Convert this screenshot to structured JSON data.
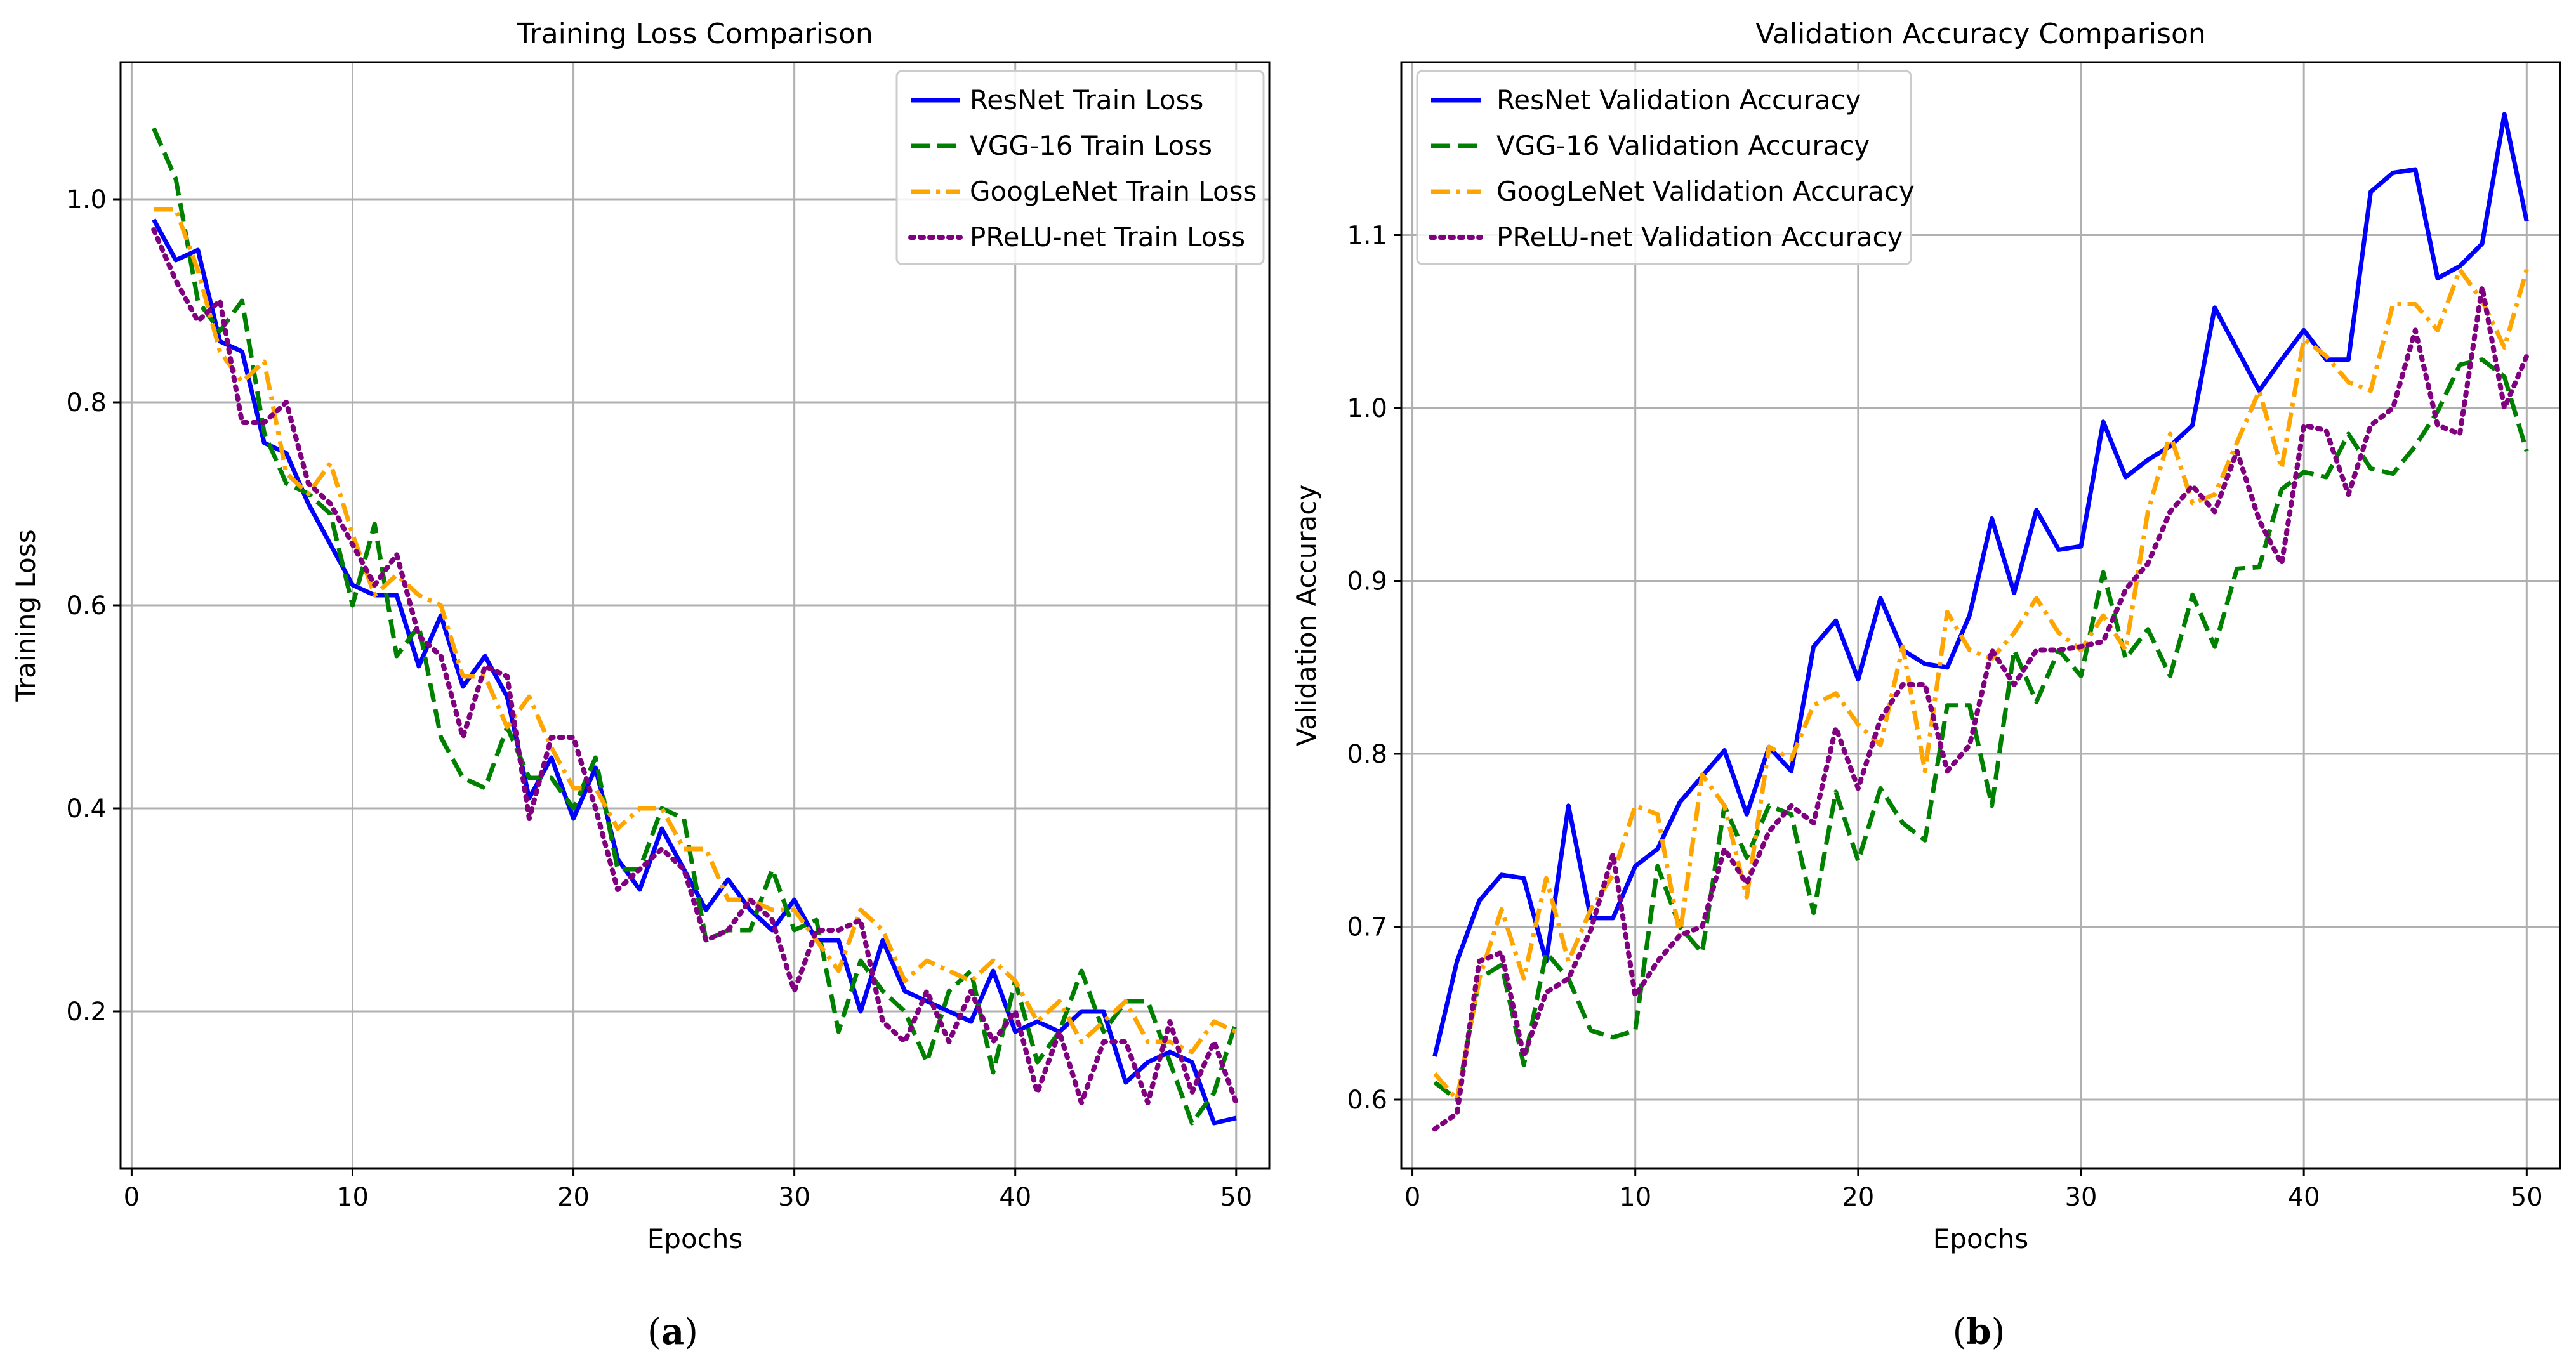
{
  "chart_data": [
    {
      "type": "line",
      "panel_label": "a",
      "title": "Training Loss Comparison",
      "xlabel": "Epochs",
      "ylabel": "Training Loss",
      "xlim": [
        -0.5,
        51.5
      ],
      "ylim": [
        0.045,
        1.135
      ],
      "xticks": [
        0,
        10,
        20,
        30,
        40,
        50
      ],
      "yticks": [
        0.2,
        0.4,
        0.6,
        0.8,
        1.0
      ],
      "ytick_labels": [
        "0.2",
        "0.4",
        "0.6",
        "0.8",
        "1.0"
      ],
      "grid": true,
      "legend_position": "upper right",
      "x": [
        1,
        2,
        3,
        4,
        5,
        6,
        7,
        8,
        9,
        10,
        11,
        12,
        13,
        14,
        15,
        16,
        17,
        18,
        19,
        20,
        21,
        22,
        23,
        24,
        25,
        26,
        27,
        28,
        29,
        30,
        31,
        32,
        33,
        34,
        35,
        36,
        37,
        38,
        39,
        40,
        41,
        42,
        43,
        44,
        45,
        46,
        47,
        48,
        49,
        50
      ],
      "series": [
        {
          "name": "ResNet Train Loss",
          "color": "#0000ff",
          "style": "solid",
          "values": [
            0.98,
            0.94,
            0.95,
            0.86,
            0.85,
            0.76,
            0.75,
            0.7,
            0.66,
            0.62,
            0.61,
            0.61,
            0.54,
            0.59,
            0.52,
            0.55,
            0.51,
            0.41,
            0.45,
            0.39,
            0.44,
            0.35,
            0.32,
            0.38,
            0.34,
            0.3,
            0.33,
            0.3,
            0.28,
            0.31,
            0.27,
            0.27,
            0.2,
            0.27,
            0.22,
            0.21,
            0.2,
            0.19,
            0.24,
            0.18,
            0.19,
            0.18,
            0.2,
            0.2,
            0.13,
            0.15,
            0.16,
            0.15,
            0.09,
            0.095
          ]
        },
        {
          "name": "VGG-16 Train Loss",
          "color": "#008000",
          "style": "dashed",
          "values": [
            1.07,
            1.02,
            0.9,
            0.87,
            0.9,
            0.77,
            0.72,
            0.71,
            0.69,
            0.6,
            0.68,
            0.55,
            0.58,
            0.47,
            0.43,
            0.42,
            0.48,
            0.43,
            0.43,
            0.4,
            0.45,
            0.34,
            0.34,
            0.4,
            0.39,
            0.27,
            0.28,
            0.28,
            0.34,
            0.28,
            0.29,
            0.18,
            0.25,
            0.22,
            0.2,
            0.15,
            0.22,
            0.24,
            0.14,
            0.23,
            0.15,
            0.18,
            0.24,
            0.18,
            0.21,
            0.21,
            0.15,
            0.09,
            0.12,
            0.19
          ]
        },
        {
          "name": "GoogLeNet Train Loss",
          "color": "#ffa500",
          "style": "dashdot",
          "values": [
            0.99,
            0.99,
            0.93,
            0.85,
            0.82,
            0.84,
            0.73,
            0.71,
            0.74,
            0.67,
            0.61,
            0.63,
            0.61,
            0.6,
            0.53,
            0.53,
            0.48,
            0.51,
            0.46,
            0.42,
            0.42,
            0.38,
            0.4,
            0.4,
            0.36,
            0.36,
            0.31,
            0.31,
            0.3,
            0.3,
            0.27,
            0.24,
            0.3,
            0.28,
            0.23,
            0.25,
            0.24,
            0.23,
            0.25,
            0.23,
            0.19,
            0.21,
            0.17,
            0.19,
            0.21,
            0.17,
            0.17,
            0.16,
            0.19,
            0.18
          ]
        },
        {
          "name": "PReLU-net Train Loss",
          "color": "#800080",
          "style": "dotted",
          "values": [
            0.97,
            0.92,
            0.88,
            0.9,
            0.78,
            0.78,
            0.8,
            0.72,
            0.7,
            0.66,
            0.62,
            0.65,
            0.57,
            0.55,
            0.47,
            0.54,
            0.53,
            0.39,
            0.47,
            0.47,
            0.4,
            0.32,
            0.34,
            0.36,
            0.34,
            0.27,
            0.28,
            0.31,
            0.29,
            0.22,
            0.28,
            0.28,
            0.29,
            0.19,
            0.17,
            0.22,
            0.17,
            0.22,
            0.17,
            0.2,
            0.12,
            0.18,
            0.11,
            0.17,
            0.17,
            0.11,
            0.19,
            0.12,
            0.17,
            0.11
          ]
        }
      ]
    },
    {
      "type": "line",
      "panel_label": "b",
      "title": "Validation Accuracy Comparison",
      "xlabel": "Epochs",
      "ylabel": "Validation Accuracy",
      "xlim": [
        -0.5,
        51.5
      ],
      "ylim": [
        0.56,
        1.2
      ],
      "xticks": [
        0,
        10,
        20,
        30,
        40,
        50
      ],
      "yticks": [
        0.6,
        0.7,
        0.8,
        0.9,
        1.0,
        1.1
      ],
      "ytick_labels": [
        "0.6",
        "0.7",
        "0.8",
        "0.9",
        "1.0",
        "1.1"
      ],
      "grid": true,
      "legend_position": "upper left",
      "x": [
        1,
        2,
        3,
        4,
        5,
        6,
        7,
        8,
        9,
        10,
        11,
        12,
        13,
        14,
        15,
        16,
        17,
        18,
        19,
        20,
        21,
        22,
        23,
        24,
        25,
        26,
        27,
        28,
        29,
        30,
        31,
        32,
        33,
        34,
        35,
        36,
        37,
        38,
        39,
        40,
        41,
        42,
        43,
        44,
        45,
        46,
        47,
        48,
        49,
        50
      ],
      "series": [
        {
          "name": "ResNet Validation Accuracy",
          "color": "#0000ff",
          "style": "solid",
          "values": [
            0.625,
            0.68,
            0.715,
            0.73,
            0.728,
            0.68,
            0.77,
            0.705,
            0.705,
            0.735,
            0.745,
            0.772,
            0.787,
            0.802,
            0.765,
            0.804,
            0.79,
            0.862,
            0.877,
            0.843,
            0.89,
            0.86,
            0.852,
            0.85,
            0.88,
            0.936,
            0.893,
            0.941,
            0.918,
            0.92,
            0.992,
            0.96,
            0.97,
            0.978,
            0.99,
            1.058,
            1.034,
            1.01,
            1.028,
            1.045,
            1.028,
            1.028,
            1.125,
            1.136,
            1.138,
            1.075,
            1.082,
            1.095,
            1.17,
            1.108
          ]
        },
        {
          "name": "VGG-16 Validation Accuracy",
          "color": "#008000",
          "style": "dashed",
          "values": [
            0.61,
            0.6,
            0.67,
            0.678,
            0.62,
            0.685,
            0.67,
            0.64,
            0.636,
            0.64,
            0.735,
            0.7,
            0.685,
            0.77,
            0.74,
            0.77,
            0.765,
            0.708,
            0.778,
            0.738,
            0.78,
            0.76,
            0.75,
            0.828,
            0.828,
            0.77,
            0.86,
            0.83,
            0.86,
            0.845,
            0.905,
            0.855,
            0.872,
            0.845,
            0.892,
            0.862,
            0.907,
            0.908,
            0.953,
            0.963,
            0.96,
            0.985,
            0.965,
            0.962,
            0.978,
            0.998,
            1.025,
            1.028,
            1.018,
            0.975
          ]
        },
        {
          "name": "GoogLeNet Validation Accuracy",
          "color": "#ffa500",
          "style": "dashdot",
          "values": [
            0.615,
            0.6,
            0.67,
            0.71,
            0.67,
            0.728,
            0.68,
            0.71,
            0.73,
            0.77,
            0.765,
            0.695,
            0.788,
            0.77,
            0.717,
            0.804,
            0.797,
            0.828,
            0.835,
            0.817,
            0.805,
            0.862,
            0.79,
            0.882,
            0.86,
            0.855,
            0.87,
            0.89,
            0.87,
            0.86,
            0.88,
            0.86,
            0.94,
            0.985,
            0.945,
            0.95,
            0.98,
            1.01,
            0.965,
            1.04,
            1.03,
            1.015,
            1.01,
            1.06,
            1.06,
            1.045,
            1.08,
            1.062,
            1.035,
            1.08
          ]
        },
        {
          "name": "PReLU-net Validation Accuracy",
          "color": "#800080",
          "style": "dotted",
          "values": [
            0.583,
            0.592,
            0.68,
            0.685,
            0.625,
            0.662,
            0.67,
            0.698,
            0.742,
            0.66,
            0.68,
            0.695,
            0.7,
            0.745,
            0.725,
            0.755,
            0.77,
            0.76,
            0.815,
            0.78,
            0.82,
            0.84,
            0.84,
            0.79,
            0.805,
            0.86,
            0.84,
            0.86,
            0.86,
            0.862,
            0.865,
            0.895,
            0.91,
            0.94,
            0.955,
            0.94,
            0.975,
            0.935,
            0.91,
            0.99,
            0.987,
            0.95,
            0.99,
            1.0,
            1.045,
            0.99,
            0.985,
            1.07,
            1.0,
            1.03
          ]
        }
      ]
    }
  ]
}
